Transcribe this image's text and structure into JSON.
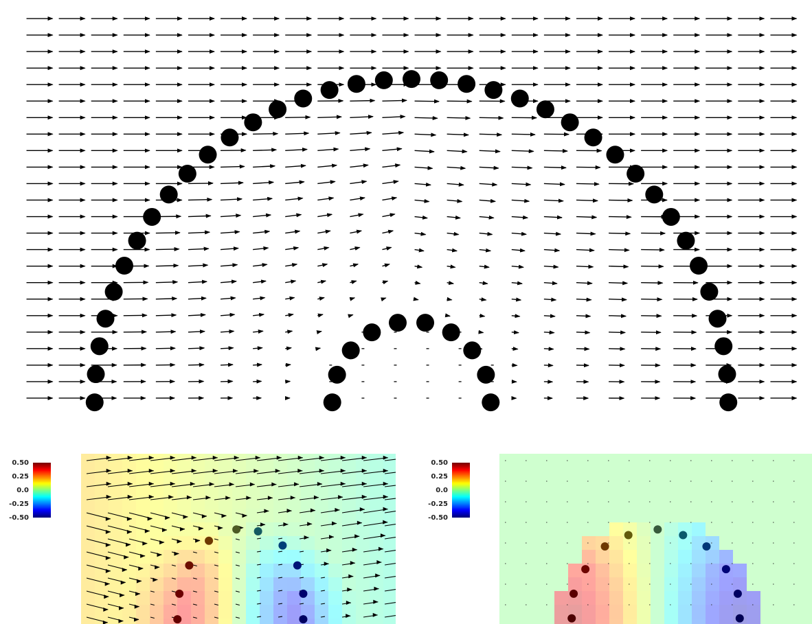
{
  "chart_data": [
    {
      "type": "quiver",
      "panel": "main",
      "uniform_flow": [
        1,
        0
      ],
      "grid": {
        "cols": 24,
        "rows": 24
      },
      "outer_arc": {
        "center_x": 0.0,
        "center_y": 0.0,
        "radius": 4.0,
        "bead_count": 37
      },
      "inner_arc": {
        "center_x": 0.0,
        "center_y": 0.0,
        "radius": 1.0,
        "bead_count": 10
      },
      "xlim": [
        -4.9,
        4.9
      ],
      "ylim": [
        0.0,
        4.9
      ],
      "bead_color": "#000000",
      "arrow_color": "#000000"
    },
    {
      "type": "heatmap",
      "panel": "bottom-left",
      "colorbar": {
        "ticks": [
          "0.50",
          "0.25",
          "0.0",
          "-0.25",
          "-0.50"
        ],
        "range": [
          -0.5,
          0.5
        ]
      },
      "beads": [
        {
          "x": -0.62,
          "y": 0.05,
          "v": 0.4
        },
        {
          "x": -0.6,
          "y": 0.32,
          "v": 0.38
        },
        {
          "x": -0.5,
          "y": 0.62,
          "v": 0.34
        },
        {
          "x": -0.3,
          "y": 0.88,
          "v": 0.22
        },
        {
          "x": -0.02,
          "y": 1.0,
          "v": 0.05
        },
        {
          "x": 0.2,
          "y": 0.98,
          "v": -0.08
        },
        {
          "x": 0.45,
          "y": 0.83,
          "v": -0.2
        },
        {
          "x": 0.6,
          "y": 0.62,
          "v": -0.32
        },
        {
          "x": 0.66,
          "y": 0.32,
          "v": -0.4
        },
        {
          "x": 0.66,
          "y": 0.05,
          "v": -0.42
        }
      ],
      "background_value": 0.0
    },
    {
      "type": "heatmap",
      "panel": "bottom-right",
      "colorbar": {
        "ticks": [
          "0.50",
          "0.25",
          "0.0",
          "-0.25",
          "-0.50"
        ],
        "range": [
          -0.5,
          0.5
        ]
      },
      "beads": [
        {
          "x": -0.86,
          "y": 0.06,
          "v": 0.45
        },
        {
          "x": -0.84,
          "y": 0.32,
          "v": 0.42
        },
        {
          "x": -0.72,
          "y": 0.58,
          "v": 0.36
        },
        {
          "x": -0.52,
          "y": 0.82,
          "v": 0.22
        },
        {
          "x": -0.28,
          "y": 0.94,
          "v": 0.1
        },
        {
          "x": 0.02,
          "y": 1.0,
          "v": 0.0
        },
        {
          "x": 0.28,
          "y": 0.94,
          "v": -0.1
        },
        {
          "x": 0.52,
          "y": 0.82,
          "v": -0.22
        },
        {
          "x": 0.72,
          "y": 0.58,
          "v": -0.36
        },
        {
          "x": 0.84,
          "y": 0.32,
          "v": -0.42
        },
        {
          "x": 0.86,
          "y": 0.06,
          "v": -0.45
        }
      ],
      "background_value": 0.0
    }
  ],
  "colors": {
    "background": "#ffffff",
    "overlay_tint": "#ffffff"
  }
}
